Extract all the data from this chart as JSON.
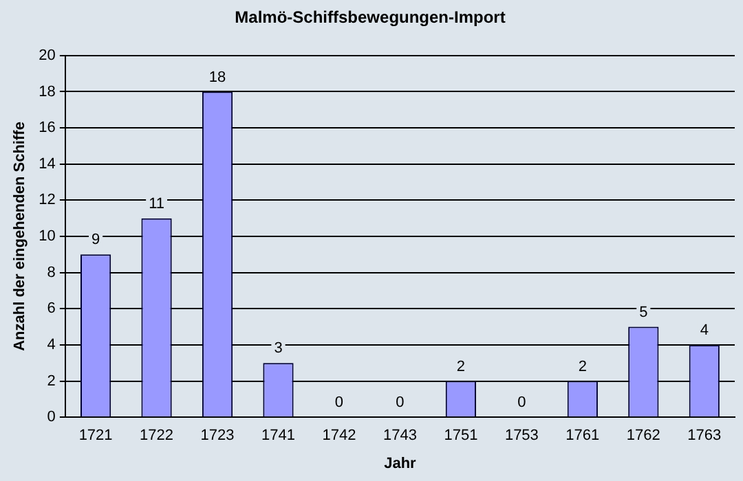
{
  "chart_data": {
    "type": "bar",
    "title": "Malmö-Schiffsbewegungen-Import",
    "xlabel": "Jahr",
    "ylabel": "Anzahl der eingehenden Schiffe",
    "categories": [
      "1721",
      "1722",
      "1723",
      "1741",
      "1742",
      "1743",
      "1751",
      "1753",
      "1761",
      "1762",
      "1763"
    ],
    "values": [
      9,
      11,
      18,
      3,
      0,
      0,
      2,
      0,
      2,
      5,
      4
    ],
    "color": "#9999ff",
    "ylim": [
      0,
      20
    ],
    "yticks": [
      0,
      2,
      4,
      6,
      8,
      10,
      12,
      14,
      16,
      18,
      20
    ],
    "grid": "y",
    "data_labels": true
  }
}
